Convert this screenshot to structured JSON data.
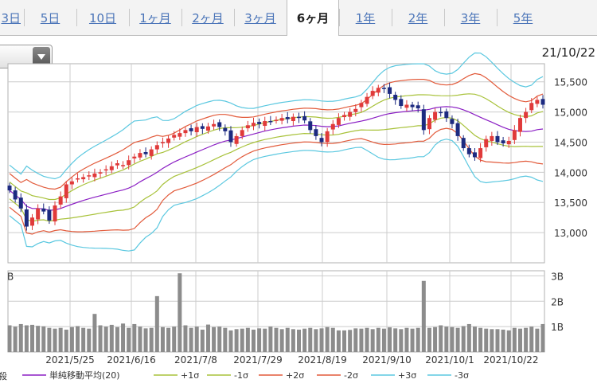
{
  "tabs": [
    {
      "label": "3日",
      "active": false
    },
    {
      "label": "5日",
      "active": false
    },
    {
      "label": "10日",
      "active": false
    },
    {
      "label": "1ヶ月",
      "active": false
    },
    {
      "label": "2ヶ月",
      "active": false
    },
    {
      "label": "3ヶ月",
      "active": false
    },
    {
      "label": "6ヶ月",
      "active": true
    },
    {
      "label": "1年",
      "active": false
    },
    {
      "label": "2年",
      "active": false
    },
    {
      "label": "3年",
      "active": false
    },
    {
      "label": "5年",
      "active": false
    }
  ],
  "date_label": "21/10/22",
  "colors": {
    "candle_up": "#e03a3a",
    "candle_down": "#1c2a80",
    "sma": "#8b1fc4",
    "sigma1": "#a8c23a",
    "sigma2": "#e25a3a",
    "sigma3": "#5bc8e0",
    "volume": "#8c8c8c",
    "grid": "#cccccc"
  },
  "chart_data": {
    "type": "candlestick",
    "ylim": [
      12500,
      15800
    ],
    "y_ticks": [
      "15,500",
      "15,000",
      "14,500",
      "14,000",
      "13,500",
      "13,000"
    ],
    "x_ticks": [
      "2021/5/25",
      "2021/6/16",
      "2021/7/8",
      "2021/7/29",
      "2021/8/19",
      "2021/9/10",
      "2021/10/1",
      "2021/10/22"
    ],
    "close": [
      13700,
      13550,
      13400,
      13100,
      13250,
      13400,
      13350,
      13200,
      13450,
      13600,
      13800,
      13850,
      13900,
      13920,
      13950,
      13980,
      14000,
      14050,
      14100,
      14150,
      14120,
      14200,
      14260,
      14320,
      14300,
      14380,
      14450,
      14500,
      14560,
      14620,
      14650,
      14700,
      14680,
      14750,
      14720,
      14760,
      14800,
      14750,
      14680,
      14500,
      14600,
      14700,
      14780,
      14820,
      14800,
      14850,
      14830,
      14870,
      14900,
      14880,
      14920,
      14900,
      14860,
      14700,
      14600,
      14500,
      14680,
      14800,
      14900,
      14950,
      15000,
      15050,
      15150,
      15250,
      15350,
      15400,
      15380,
      15300,
      15200,
      15100,
      15120,
      15080,
      15060,
      14700,
      14900,
      15000,
      14980,
      14900,
      14800,
      14600,
      14400,
      14300,
      14250,
      14400,
      14550,
      14600,
      14500,
      14480,
      14520,
      14700,
      14900,
      15000,
      15150,
      15200,
      15120
    ],
    "volume_ylim": [
      0,
      3.2
    ],
    "volume_ticks": [
      "3B",
      "2B",
      "1B"
    ],
    "volume_left_label": "B",
    "volume": [
      1.05,
      1.0,
      1.1,
      1.05,
      1.07,
      1.03,
      1.01,
      0.95,
      0.92,
      0.95,
      0.88,
      0.98,
      1.02,
      0.95,
      0.92,
      1.5,
      1.05,
      1.0,
      1.07,
      0.98,
      1.12,
      0.95,
      1.1,
      1.0,
      0.93,
      0.95,
      2.2,
      0.98,
      0.95,
      1.0,
      3.1,
      1.05,
      0.95,
      1.0,
      0.88,
      1.08,
      0.98,
      1.0,
      0.95,
      0.85,
      0.9,
      0.92,
      0.95,
      0.88,
      0.93,
      0.92,
      1.0,
      0.95,
      0.9,
      0.95,
      0.9,
      0.88,
      0.92,
      0.95,
      0.9,
      0.93,
      0.98,
      0.95,
      0.85,
      0.85,
      0.87,
      0.93,
      0.92,
      0.95,
      0.9,
      0.95,
      0.92,
      0.97,
      0.93,
      0.9,
      0.95,
      0.92,
      0.95,
      2.8,
      0.95,
      0.98,
      1.05,
      1.0,
      0.98,
      0.95,
      1.02,
      1.1,
      1.0,
      0.95,
      0.92,
      0.9,
      0.9,
      0.88,
      0.85,
      0.95,
      0.92,
      0.95,
      1.0,
      0.92,
      1.1
    ],
    "legend_prefix": "殺",
    "legend": [
      {
        "label": "単純移動平均(20)",
        "color": "#8b1fc4"
      },
      {
        "label": "+1σ",
        "color": "#a8c23a"
      },
      {
        "label": "-1σ",
        "color": "#a8c23a"
      },
      {
        "label": "+2σ",
        "color": "#e25a3a"
      },
      {
        "label": "-2σ",
        "color": "#e25a3a"
      },
      {
        "label": "+3σ",
        "color": "#5bc8e0"
      },
      {
        "label": "-3σ",
        "color": "#5bc8e0"
      }
    ]
  }
}
